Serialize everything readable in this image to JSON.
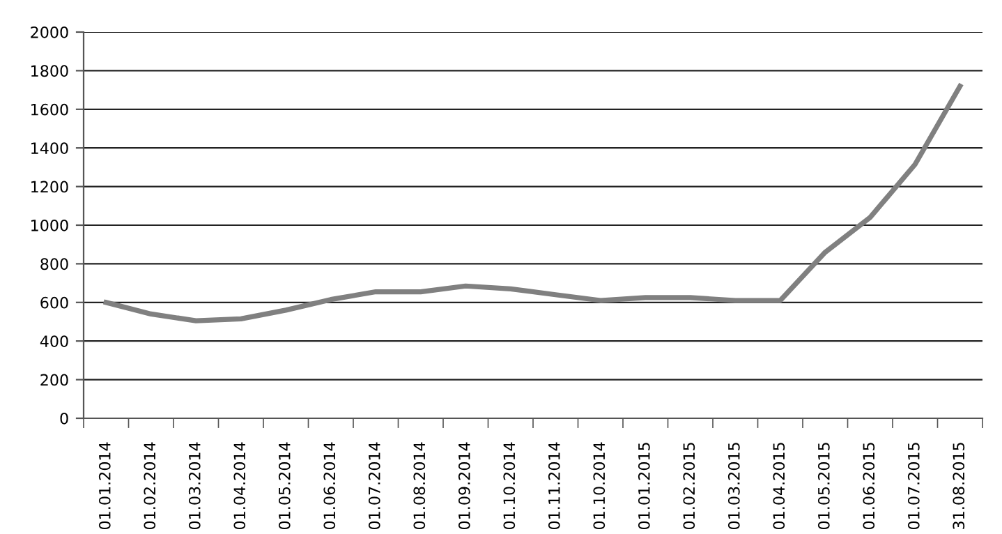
{
  "chart_data": {
    "type": "line",
    "categories": [
      "01.01.2014",
      "01.02.2014",
      "01.03.2014",
      "01.04.2014",
      "01.05.2014",
      "01.06.2014",
      "01.07.2014",
      "01.08.2014",
      "01.09.2014",
      "01.10.2014",
      "01.11.2014",
      "01.10.2014",
      "01.01.2015",
      "01.02.2015",
      "01.03.2015",
      "01.04.2015",
      "01.05.2015",
      "01.06.2015",
      "01.07.2015",
      "31.08.2015"
    ],
    "series": [
      {
        "color": "#808080",
        "values": [
          600,
          540,
          505,
          515,
          560,
          615,
          655,
          655,
          685,
          670,
          640,
          610,
          625,
          625,
          610,
          610,
          860,
          1040,
          1315,
          1720
        ]
      }
    ],
    "ylim": [
      0,
      2000
    ],
    "yticks": [
      0,
      200,
      400,
      600,
      800,
      1000,
      1200,
      1400,
      1600,
      1800,
      2000
    ],
    "grid": "y",
    "legend": false,
    "marker": "none",
    "line_style": "solid"
  }
}
